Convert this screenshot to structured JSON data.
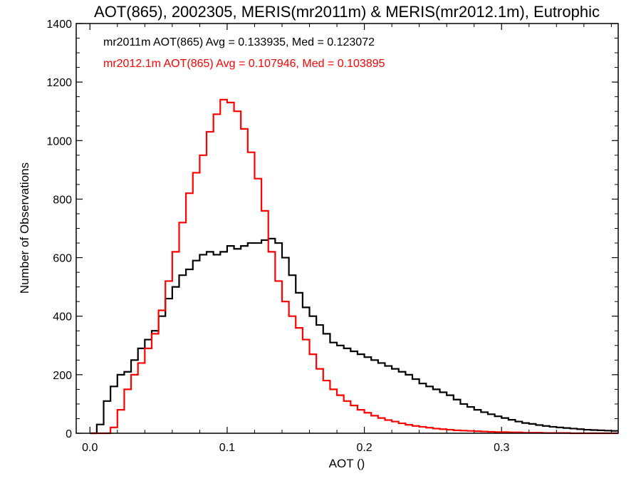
{
  "chart_data": {
    "type": "line",
    "title": "AOT(865), 2002305, MERIS(mr2011m) & MERIS(mr2012.1m), Eutrophic",
    "xlabel": "AOT ()",
    "ylabel": "Number of Observations",
    "xlim": [
      -0.01,
      0.385
    ],
    "ylim": [
      0,
      1400
    ],
    "xticks": [
      "0.0",
      "0.1",
      "0.2",
      "0.3"
    ],
    "xtick_values": [
      0.0,
      0.1,
      0.2,
      0.3
    ],
    "yticks": [
      "0",
      "200",
      "400",
      "600",
      "800",
      "1000",
      "1200",
      "1400"
    ],
    "ytick_values": [
      0,
      200,
      400,
      600,
      800,
      1000,
      1200,
      1400
    ],
    "grid": false,
    "annotations": [
      {
        "text": "mr2011m AOT(865) Avg = 0.133935, Med = 0.123072",
        "color": "#000000"
      },
      {
        "text": "mr2012.1m AOT(865) Avg = 0.107946, Med = 0.103895",
        "color": "#ff0000"
      }
    ],
    "series": [
      {
        "color": "#000000",
        "x": [
          0.0,
          0.005,
          0.01,
          0.015,
          0.02,
          0.025,
          0.03,
          0.035,
          0.04,
          0.045,
          0.05,
          0.055,
          0.06,
          0.065,
          0.07,
          0.075,
          0.08,
          0.085,
          0.09,
          0.095,
          0.1,
          0.105,
          0.11,
          0.115,
          0.12,
          0.125,
          0.13,
          0.135,
          0.14,
          0.145,
          0.15,
          0.155,
          0.16,
          0.165,
          0.17,
          0.175,
          0.18,
          0.185,
          0.19,
          0.195,
          0.2,
          0.205,
          0.21,
          0.215,
          0.22,
          0.225,
          0.23,
          0.235,
          0.24,
          0.245,
          0.25,
          0.255,
          0.26,
          0.265,
          0.27,
          0.275,
          0.28,
          0.285,
          0.29,
          0.295,
          0.3,
          0.305,
          0.31,
          0.315,
          0.32,
          0.325,
          0.33,
          0.335,
          0.34,
          0.345,
          0.35,
          0.355,
          0.36,
          0.365,
          0.37,
          0.375,
          0.38
        ],
        "values": [
          0,
          30,
          110,
          160,
          200,
          210,
          250,
          290,
          320,
          350,
          400,
          460,
          500,
          540,
          560,
          590,
          610,
          620,
          610,
          620,
          640,
          630,
          640,
          650,
          650,
          660,
          665,
          650,
          600,
          540,
          480,
          430,
          400,
          370,
          340,
          310,
          300,
          290,
          280,
          270,
          260,
          250,
          240,
          230,
          220,
          210,
          200,
          185,
          170,
          160,
          150,
          140,
          130,
          115,
          100,
          90,
          80,
          72,
          65,
          58,
          52,
          46,
          40,
          35,
          32,
          28,
          25,
          22,
          20,
          18,
          16,
          14,
          12,
          11,
          10,
          9,
          8
        ]
      },
      {
        "color": "#ff0000",
        "x": [
          0.0,
          0.005,
          0.01,
          0.015,
          0.02,
          0.025,
          0.03,
          0.035,
          0.04,
          0.045,
          0.05,
          0.055,
          0.06,
          0.065,
          0.07,
          0.075,
          0.08,
          0.085,
          0.09,
          0.095,
          0.1,
          0.105,
          0.11,
          0.115,
          0.12,
          0.125,
          0.13,
          0.135,
          0.14,
          0.145,
          0.15,
          0.155,
          0.16,
          0.165,
          0.17,
          0.175,
          0.18,
          0.185,
          0.19,
          0.195,
          0.2,
          0.205,
          0.21,
          0.215,
          0.22,
          0.225,
          0.23,
          0.235,
          0.24,
          0.245,
          0.25,
          0.255,
          0.26,
          0.265,
          0.27,
          0.275,
          0.28,
          0.285,
          0.29,
          0.295,
          0.3,
          0.305,
          0.31,
          0.315,
          0.32,
          0.325,
          0.33,
          0.335,
          0.34,
          0.345,
          0.35,
          0.355,
          0.36,
          0.365,
          0.37,
          0.375,
          0.38
        ],
        "values": [
          0,
          0,
          0,
          20,
          80,
          150,
          200,
          240,
          290,
          340,
          420,
          520,
          620,
          720,
          820,
          890,
          950,
          1030,
          1090,
          1140,
          1130,
          1100,
          1040,
          960,
          870,
          760,
          620,
          520,
          450,
          400,
          360,
          320,
          270,
          220,
          180,
          150,
          130,
          110,
          95,
          80,
          70,
          60,
          52,
          45,
          40,
          34,
          29,
          25,
          22,
          19,
          16,
          14,
          12,
          10,
          9,
          8,
          7,
          6,
          5,
          4,
          4,
          3,
          3,
          2,
          2,
          2,
          1,
          1,
          1,
          1,
          0,
          0,
          0,
          0,
          0,
          0,
          0
        ]
      }
    ]
  }
}
